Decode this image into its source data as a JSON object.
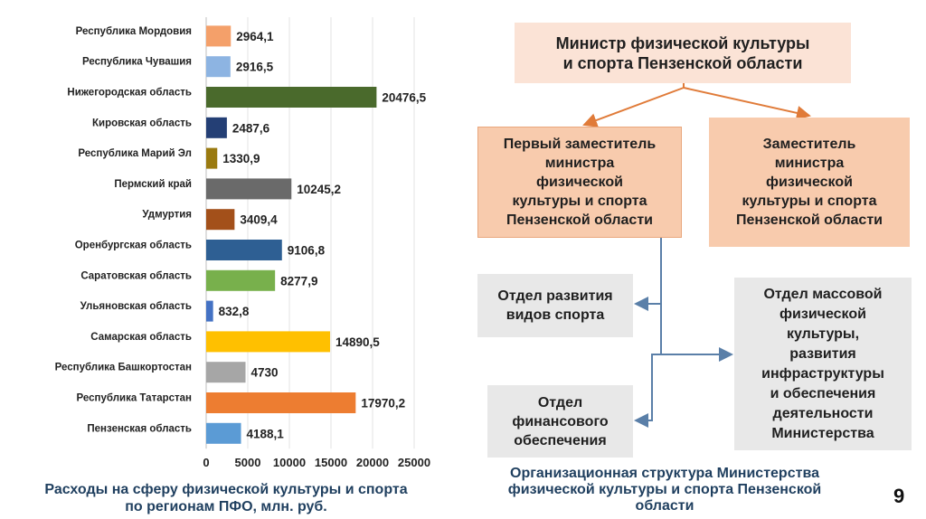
{
  "chart_data": {
    "type": "bar",
    "orientation": "horizontal",
    "categories": [
      "Республика Мордовия",
      "Республика Чувашия",
      "Нижегородская область",
      "Кировская область",
      "Республика Марий Эл",
      "Пермский край",
      "Удмуртия",
      "Оренбургская область",
      "Саратовская область",
      "Ульяновская область",
      "Самарская область",
      "Республика Башкортостан",
      "Республика Татарстан",
      "Пензенская область"
    ],
    "values": [
      2964.1,
      2916.5,
      20476.5,
      2487.6,
      1330.9,
      10245.2,
      3409.4,
      9106.8,
      8277.9,
      832.8,
      14890.5,
      4730,
      17970.2,
      4188.1
    ],
    "value_labels": [
      "2964,1",
      "2916,5",
      "20476,5",
      "2487,6",
      "1330,9",
      "10245,2",
      "3409,4",
      "9106,8",
      "8277,9",
      "832,8",
      "14890,5",
      "4730",
      "17970,2",
      "4188,1"
    ],
    "colors": [
      "#f4a06a",
      "#8db4e2",
      "#4a6a2c",
      "#243f75",
      "#9a7a10",
      "#6a6a6a",
      "#a3501a",
      "#2e5f93",
      "#78b04c",
      "#4472c4",
      "#ffc000",
      "#a6a6a6",
      "#ed7d31",
      "#5b9bd5"
    ],
    "xlim": [
      0,
      25000
    ],
    "xticks": [
      0,
      5000,
      10000,
      15000,
      20000,
      25000
    ],
    "grid": true,
    "legend": "none",
    "caption_lines": [
      "Расходы на сферу физической культуры и спорта",
      "по регионам ПФО, млн. руб."
    ]
  },
  "org_chart": {
    "minister": "Министр физической культуры\nи спорта Пензенской области",
    "first_deputy": "Первый заместитель\nминистра\nфизической\nкультуры и спорта\nПензенской области",
    "deputy": "Заместитель\nминистра\nфизической\nкультуры и спорта\nПензенской области",
    "dept_sport": "Отдел развития\nвидов спорта",
    "dept_finance": "Отдел\nфинансового\nобеспечения",
    "dept_mass": "Отдел массовой\nфизической\nкультуры,\nразвития\nинфраструктуры\nи обеспечения\nдеятельности\nМинистерства",
    "caption_lines": [
      "Организационная структура Министерства",
      "физической культуры и спорта Пензенской",
      "области"
    ],
    "colors": {
      "peach": "#fbe3d6",
      "peach_dark": "#f8cbad",
      "gray": "#e8e8e8",
      "arrow_orange": "#e07b39",
      "arrow_blue": "#5a7fa8"
    }
  },
  "page_number": "9"
}
